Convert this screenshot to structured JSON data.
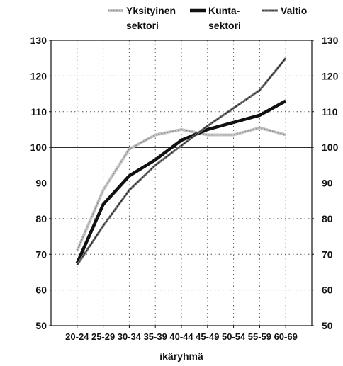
{
  "chart_data": {
    "type": "line",
    "categories": [
      "20-24",
      "25-29",
      "30-34",
      "35-39",
      "40-44",
      "45-49",
      "50-54",
      "55-59",
      "60-69"
    ],
    "xlabel": "ikäryhmä",
    "ylabel": "",
    "ylim": [
      50,
      130
    ],
    "yticks": [
      "50",
      "60",
      "70",
      "80",
      "90",
      "100",
      "110",
      "120",
      "130"
    ],
    "reference_line": 100,
    "grid": "dotted",
    "legend_position": "top",
    "series": [
      {
        "name_lines": [
          "Yksityinen",
          "sektori"
        ],
        "name": "Yksityinen sektori",
        "color": "#a8a8a8",
        "style": "light",
        "values": [
          71,
          88,
          99.5,
          103.5,
          105,
          103.5,
          103.5,
          105.5,
          103.5
        ]
      },
      {
        "name_lines": [
          "Kunta-",
          "sektori"
        ],
        "name": "Kunta-sektori",
        "color": "#111111",
        "style": "thick",
        "values": [
          67.5,
          84,
          92,
          96.5,
          102,
          105,
          107,
          109,
          113
        ]
      },
      {
        "name_lines": [
          "Valtio"
        ],
        "name": "Valtio",
        "color": "#555555",
        "style": "medium",
        "values": [
          67,
          78,
          88,
          95,
          100.5,
          106,
          111,
          116,
          125
        ]
      }
    ]
  }
}
